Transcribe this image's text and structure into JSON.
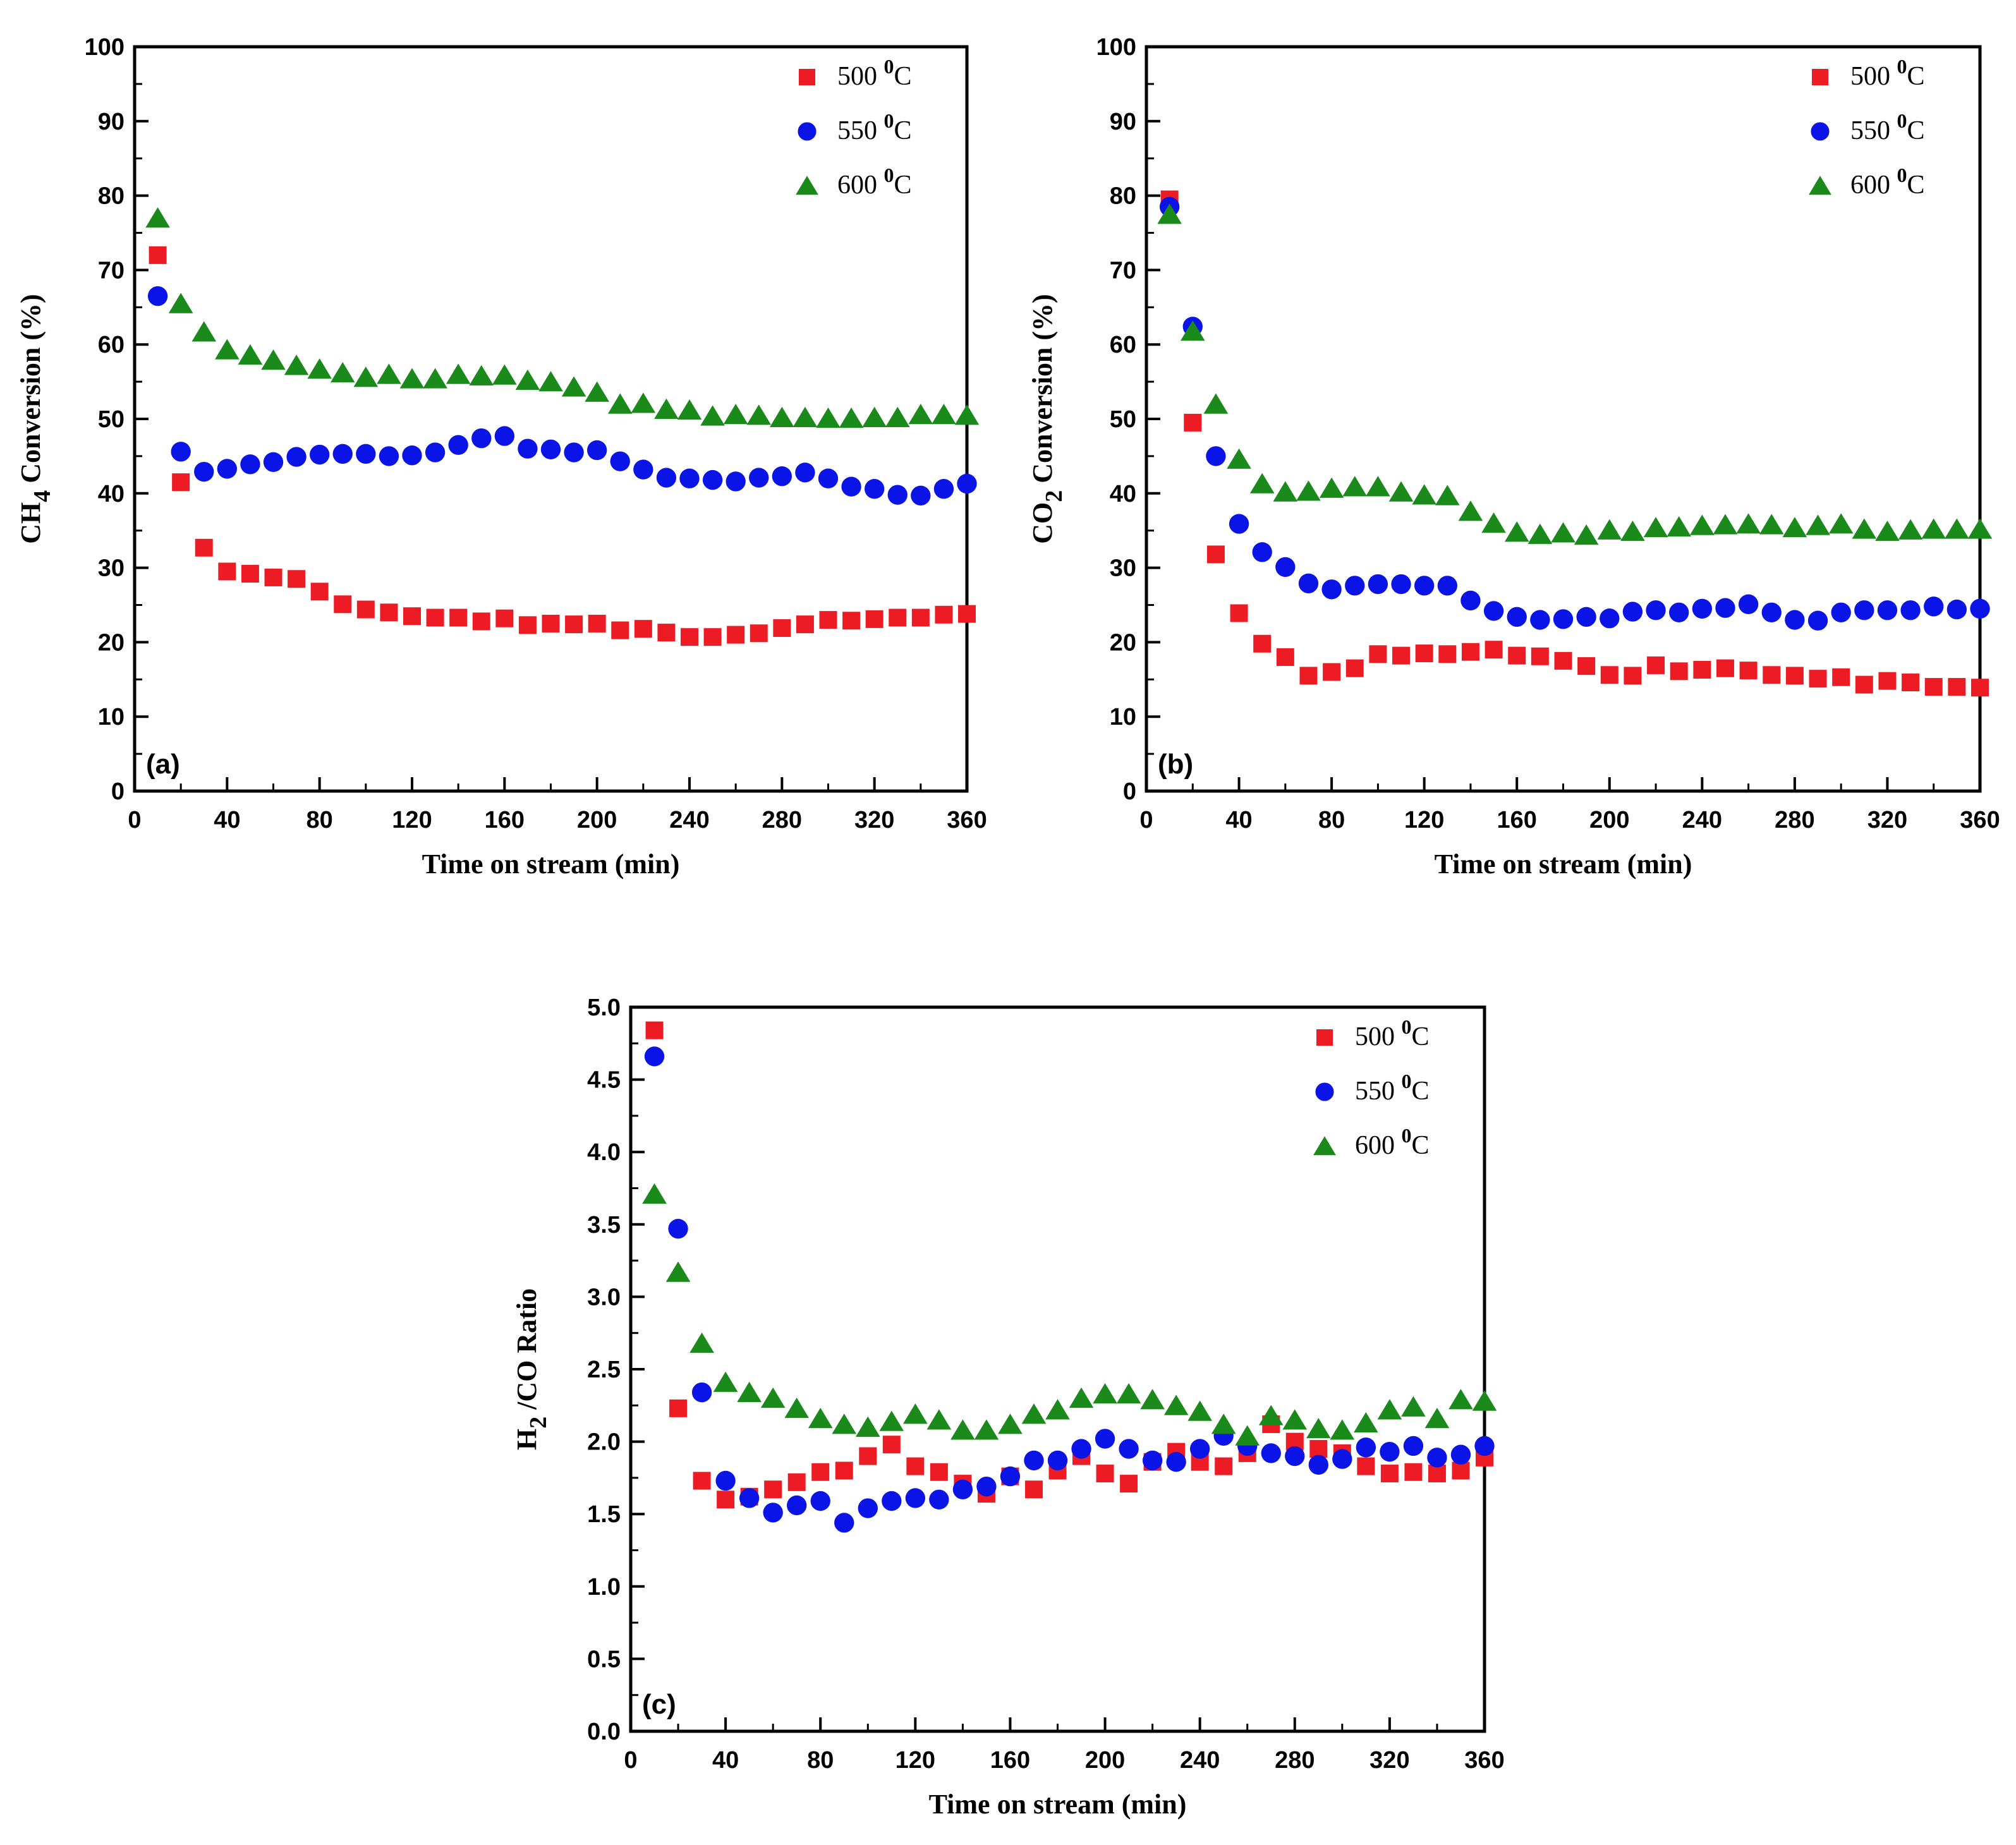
{
  "chart_data": [
    {
      "id": "a",
      "type": "scatter",
      "panel_label": "(a)",
      "xlabel": "Time on stream (min)",
      "ylabel_main": "CH",
      "ylabel_sub": "4",
      "ylabel_rest": " Conversion (%)",
      "xlim": [
        0,
        360
      ],
      "ylim": [
        0,
        100
      ],
      "xticks": [
        0,
        40,
        80,
        120,
        160,
        200,
        240,
        280,
        320,
        360
      ],
      "yticks": [
        0,
        10,
        20,
        30,
        40,
        50,
        60,
        70,
        80,
        90,
        100
      ],
      "ytick_decimals": 0,
      "legend_position": "top-right",
      "x": [
        10,
        20,
        30,
        40,
        50,
        60,
        70,
        80,
        90,
        100,
        110,
        120,
        130,
        140,
        150,
        160,
        170,
        180,
        190,
        200,
        210,
        220,
        230,
        240,
        250,
        260,
        270,
        280,
        290,
        300,
        310,
        320,
        330,
        340,
        350,
        360
      ],
      "series": [
        {
          "name": "500 ",
          "sup": "0",
          "unit": "C",
          "marker": "square",
          "color": "#ed1c24",
          "values": [
            72.0,
            41.5,
            32.7,
            29.5,
            29.2,
            28.7,
            28.5,
            26.8,
            25.1,
            24.4,
            24.0,
            23.5,
            23.3,
            23.3,
            22.8,
            23.2,
            22.3,
            22.5,
            22.4,
            22.5,
            21.6,
            21.8,
            21.3,
            20.7,
            20.7,
            21.0,
            21.2,
            21.9,
            22.4,
            23.0,
            22.9,
            23.1,
            23.3,
            23.3,
            23.7,
            23.8
          ]
        },
        {
          "name": "550 ",
          "sup": "0",
          "unit": "C",
          "marker": "circle",
          "color": "#0a14e6",
          "values": [
            66.5,
            45.6,
            42.9,
            43.3,
            43.9,
            44.2,
            44.9,
            45.2,
            45.3,
            45.3,
            45.0,
            45.1,
            45.5,
            46.5,
            47.4,
            47.7,
            46.0,
            45.9,
            45.5,
            45.8,
            44.3,
            43.2,
            42.1,
            42.0,
            41.8,
            41.6,
            42.1,
            42.3,
            42.8,
            42.0,
            40.9,
            40.6,
            39.8,
            39.7,
            40.6,
            41.3
          ]
        },
        {
          "name": "600 ",
          "sup": "0",
          "unit": "C",
          "marker": "triangle",
          "color": "#1a8a1a",
          "values": [
            77.0,
            65.5,
            61.7,
            59.3,
            58.6,
            57.9,
            57.2,
            56.7,
            56.2,
            55.6,
            56.0,
            55.4,
            55.4,
            56.0,
            55.8,
            55.9,
            55.2,
            55.0,
            54.3,
            53.6,
            52.0,
            52.1,
            51.3,
            51.2,
            50.4,
            50.6,
            50.5,
            50.2,
            50.2,
            50.1,
            50.1,
            50.2,
            50.2,
            50.6,
            50.6,
            50.5
          ]
        }
      ]
    },
    {
      "id": "b",
      "type": "scatter",
      "panel_label": "(b)",
      "xlabel": "Time on stream (min)",
      "ylabel_main": "CO",
      "ylabel_sub": "2",
      "ylabel_rest": " Conversion (%)",
      "xlim": [
        0,
        360
      ],
      "ylim": [
        0,
        100
      ],
      "xticks": [
        0,
        40,
        80,
        120,
        160,
        200,
        240,
        280,
        320,
        360
      ],
      "yticks": [
        0,
        10,
        20,
        30,
        40,
        50,
        60,
        70,
        80,
        90,
        100
      ],
      "ytick_decimals": 0,
      "legend_position": "top-right",
      "x": [
        10,
        20,
        30,
        40,
        50,
        60,
        70,
        80,
        90,
        100,
        110,
        120,
        130,
        140,
        150,
        160,
        170,
        180,
        190,
        200,
        210,
        220,
        230,
        240,
        250,
        260,
        270,
        280,
        290,
        300,
        310,
        320,
        330,
        340,
        350,
        360
      ],
      "series": [
        {
          "name": "500 ",
          "sup": "0",
          "unit": "C",
          "marker": "square",
          "color": "#ed1c24",
          "values": [
            79.5,
            49.5,
            31.8,
            23.9,
            19.8,
            18.0,
            15.5,
            16.0,
            16.5,
            18.4,
            18.2,
            18.5,
            18.4,
            18.7,
            19.0,
            18.2,
            18.1,
            17.5,
            16.8,
            15.6,
            15.5,
            16.9,
            16.1,
            16.3,
            16.5,
            16.2,
            15.6,
            15.5,
            15.1,
            15.3,
            14.3,
            14.8,
            14.6,
            14.0,
            14.0,
            13.9
          ]
        },
        {
          "name": "550 ",
          "sup": "0",
          "unit": "C",
          "marker": "circle",
          "color": "#0a14e6",
          "values": [
            78.5,
            62.4,
            45.0,
            35.9,
            32.1,
            30.1,
            27.9,
            27.1,
            27.6,
            27.8,
            27.8,
            27.6,
            27.6,
            25.6,
            24.2,
            23.4,
            23.0,
            23.1,
            23.4,
            23.2,
            24.1,
            24.3,
            24.0,
            24.5,
            24.6,
            25.1,
            24.0,
            23.0,
            22.9,
            24.0,
            24.3,
            24.3,
            24.3,
            24.8,
            24.4,
            24.5
          ]
        },
        {
          "name": "600 ",
          "sup": "0",
          "unit": "C",
          "marker": "triangle",
          "color": "#1a8a1a",
          "values": [
            77.5,
            61.8,
            52.0,
            44.6,
            41.3,
            40.2,
            40.3,
            40.7,
            40.9,
            40.9,
            40.2,
            39.8,
            39.7,
            37.6,
            36.0,
            34.8,
            34.5,
            34.7,
            34.4,
            35.1,
            34.9,
            35.4,
            35.5,
            35.7,
            35.8,
            35.9,
            35.8,
            35.4,
            35.7,
            35.9,
            35.2,
            34.9,
            35.1,
            35.2,
            35.2,
            35.2
          ]
        }
      ]
    },
    {
      "id": "c",
      "type": "scatter",
      "panel_label": "(c)",
      "xlabel": "Time on stream (min)",
      "ylabel_main": "H",
      "ylabel_sub": "2",
      "ylabel_rest": " /CO Ratio",
      "xlim": [
        0,
        360
      ],
      "ylim": [
        0,
        5
      ],
      "xticks": [
        0,
        40,
        80,
        120,
        160,
        200,
        240,
        280,
        320,
        360
      ],
      "yticks": [
        0.0,
        0.5,
        1.0,
        1.5,
        2.0,
        2.5,
        3.0,
        3.5,
        4.0,
        4.5,
        5.0
      ],
      "ytick_decimals": 1,
      "legend_position": "top-right",
      "x": [
        10,
        20,
        30,
        40,
        50,
        60,
        70,
        80,
        90,
        100,
        110,
        120,
        130,
        140,
        150,
        160,
        170,
        180,
        190,
        200,
        210,
        220,
        230,
        240,
        250,
        260,
        270,
        280,
        290,
        300,
        310,
        320,
        330,
        340,
        350,
        360
      ],
      "series": [
        {
          "name": "500 ",
          "sup": "0",
          "unit": "C",
          "marker": "square",
          "color": "#ed1c24",
          "values": [
            4.84,
            2.23,
            1.73,
            1.6,
            1.62,
            1.67,
            1.72,
            1.79,
            1.8,
            1.9,
            1.98,
            1.83,
            1.79,
            1.71,
            1.64,
            1.76,
            1.67,
            1.8,
            1.9,
            1.78,
            1.71,
            1.86,
            1.93,
            1.86,
            1.83,
            1.92,
            2.12,
            2.0,
            1.95,
            1.92,
            1.83,
            1.78,
            1.79,
            1.78,
            1.8,
            1.89
          ]
        },
        {
          "name": "550 ",
          "sup": "0",
          "unit": "C",
          "marker": "circle",
          "color": "#0a14e6",
          "values": [
            4.66,
            3.47,
            2.34,
            1.73,
            1.61,
            1.51,
            1.56,
            1.59,
            1.44,
            1.54,
            1.59,
            1.61,
            1.6,
            1.67,
            1.69,
            1.76,
            1.87,
            1.87,
            1.95,
            2.02,
            1.95,
            1.87,
            1.86,
            1.95,
            2.04,
            1.97,
            1.92,
            1.9,
            1.84,
            1.88,
            1.96,
            1.93,
            1.97,
            1.89,
            1.91,
            1.97
          ]
        },
        {
          "name": "600 ",
          "sup": "0",
          "unit": "C",
          "marker": "triangle",
          "color": "#1a8a1a",
          "values": [
            3.71,
            3.17,
            2.68,
            2.41,
            2.34,
            2.3,
            2.23,
            2.16,
            2.12,
            2.1,
            2.14,
            2.19,
            2.15,
            2.08,
            2.08,
            2.12,
            2.19,
            2.22,
            2.3,
            2.33,
            2.33,
            2.29,
            2.25,
            2.21,
            2.12,
            2.04,
            2.18,
            2.15,
            2.09,
            2.08,
            2.13,
            2.22,
            2.24,
            2.16,
            2.29,
            2.28
          ]
        }
      ]
    }
  ]
}
